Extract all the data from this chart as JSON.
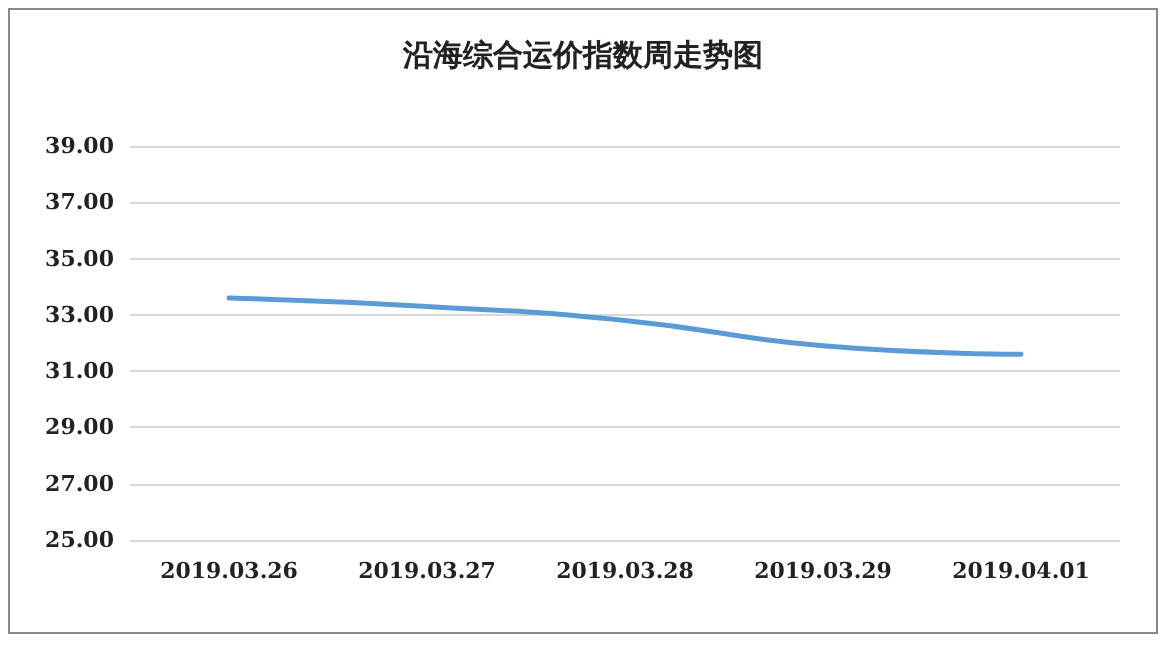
{
  "chart_data": {
    "type": "line",
    "title": "沿海综合运价指数周走势图",
    "categories": [
      "2019.03.26",
      "2019.03.27",
      "2019.03.28",
      "2019.03.29",
      "2019.04.01"
    ],
    "series": [
      {
        "color": "#5b9bd5",
        "values": [
          33.6,
          33.3,
          32.8,
          31.9,
          31.6
        ]
      }
    ],
    "ylim": [
      25,
      39
    ],
    "yticks": [
      {
        "value": 25,
        "label": "25.00"
      },
      {
        "value": 27,
        "label": "27.00"
      },
      {
        "value": 29,
        "label": "29.00"
      },
      {
        "value": 31,
        "label": "31.00"
      },
      {
        "value": 33,
        "label": "33.00"
      },
      {
        "value": 35,
        "label": "35.00"
      },
      {
        "value": 37,
        "label": "37.00"
      },
      {
        "value": 39,
        "label": "39.00"
      }
    ],
    "grid": "y",
    "marker": "none"
  }
}
